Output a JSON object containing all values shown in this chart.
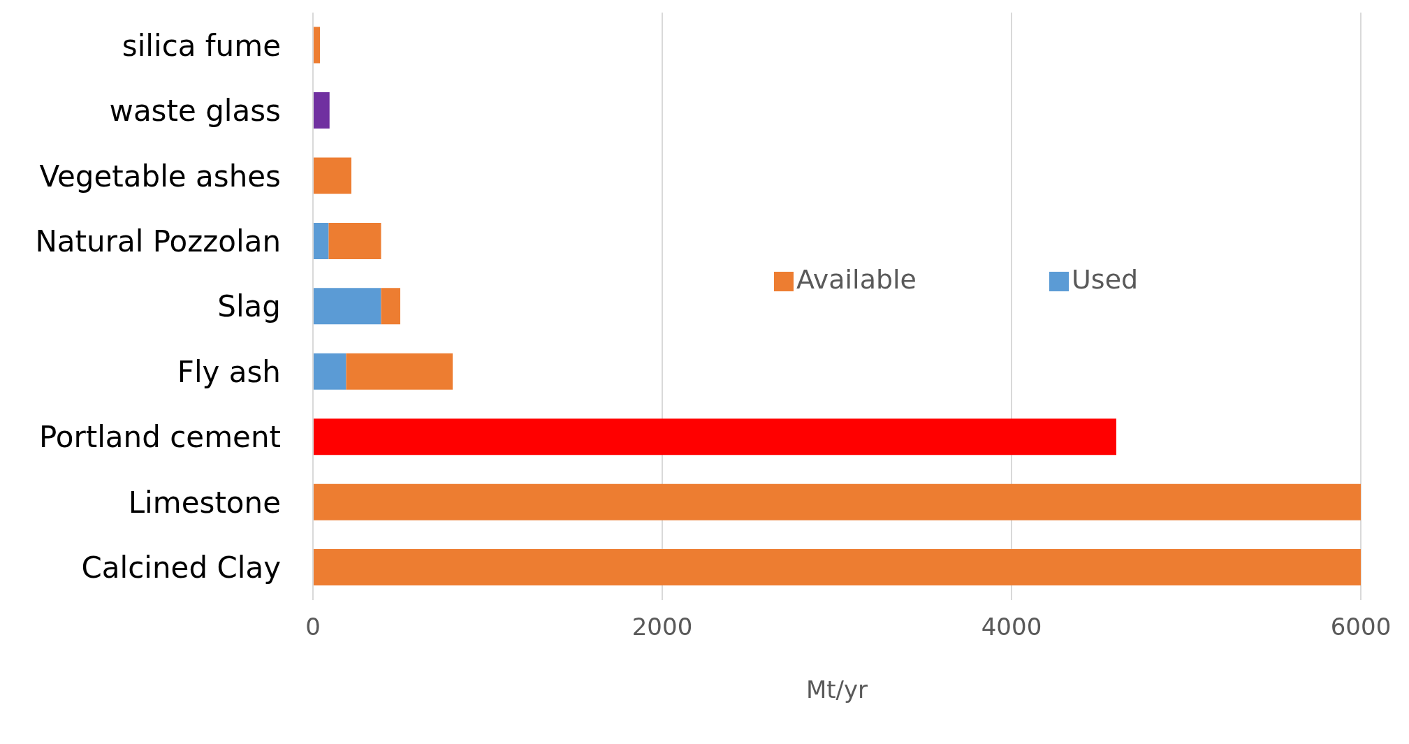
{
  "chart_data": {
    "type": "bar",
    "orientation": "horizontal",
    "stacked": true,
    "categories": [
      "silica fume",
      "waste glass",
      "Vegetable ashes",
      "Natural Pozzolan",
      "Slag",
      "Fly ash",
      "Portland cement",
      "Limestone",
      "Calcined Clay"
    ],
    "series": [
      {
        "name": "Used",
        "color": "#5b9bd5",
        "values": [
          null,
          null,
          null,
          90,
          390,
          190,
          null,
          null,
          null
        ]
      },
      {
        "name": "Available",
        "color": "#ed7d31",
        "colors": [
          "#ed7d31",
          "#7030a0",
          "#ed7d31",
          "#ed7d31",
          "#ed7d31",
          "#ed7d31",
          "#ff0000",
          "#ed7d31",
          "#ed7d31"
        ],
        "values": [
          40,
          95,
          220,
          300,
          110,
          610,
          4600,
          6000,
          6000
        ]
      }
    ],
    "xlim": [
      0,
      6000
    ],
    "xticks": [
      0,
      2000,
      4000,
      6000
    ],
    "xlabel": "Mt/yr",
    "grid": "x",
    "legend": "right"
  }
}
